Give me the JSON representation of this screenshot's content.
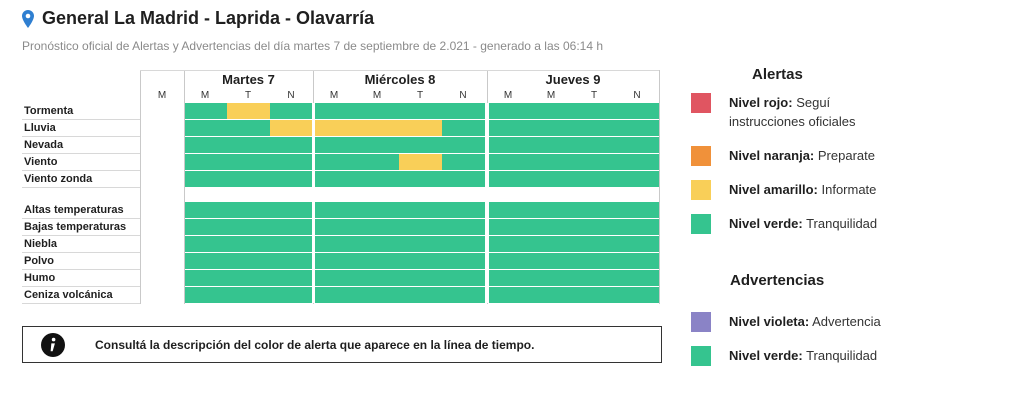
{
  "header": {
    "title": "General La Madrid - Laprida - Olavarría",
    "subtitle": "Pronóstico oficial de Alertas y Advertencias del día martes 7 de septiembre de 2.021 - generado a las 06:14 h"
  },
  "colors": {
    "rojo": "#e05561",
    "naranja": "#f0913a",
    "amarillo": "#f9cf58",
    "verde": "#35c48f",
    "violeta": "#8a83c6"
  },
  "days": [
    {
      "label": "Martes 7",
      "slots": [
        "M",
        "M",
        "T",
        "N"
      ]
    },
    {
      "label": "Miércoles 8",
      "slots": [
        "M",
        "M",
        "T",
        "N"
      ]
    },
    {
      "label": "Jueves 9",
      "slots": [
        "M",
        "M",
        "T",
        "N"
      ]
    }
  ],
  "alert_rows": [
    {
      "label": "Tormenta",
      "levels": [
        "none",
        "verde",
        "amarillo",
        "verde",
        "verde",
        "verde",
        "verde",
        "verde",
        "verde",
        "verde",
        "verde",
        "verde"
      ]
    },
    {
      "label": "Lluvia",
      "levels": [
        "none",
        "verde",
        "verde",
        "amarillo",
        "amarillo",
        "amarillo",
        "amarillo",
        "verde",
        "verde",
        "verde",
        "verde",
        "verde"
      ]
    },
    {
      "label": "Nevada",
      "levels": [
        "none",
        "verde",
        "verde",
        "verde",
        "verde",
        "verde",
        "verde",
        "verde",
        "verde",
        "verde",
        "verde",
        "verde"
      ]
    },
    {
      "label": "Viento",
      "levels": [
        "none",
        "verde",
        "verde",
        "verde",
        "verde",
        "verde",
        "amarillo",
        "verde",
        "verde",
        "verde",
        "verde",
        "verde"
      ]
    },
    {
      "label": "Viento zonda",
      "levels": [
        "none",
        "verde",
        "verde",
        "verde",
        "verde",
        "verde",
        "verde",
        "verde",
        "verde",
        "verde",
        "verde",
        "verde"
      ]
    }
  ],
  "warning_rows": [
    {
      "label": "Altas temperaturas",
      "levels": [
        "none",
        "verde",
        "verde",
        "verde",
        "verde",
        "verde",
        "verde",
        "verde",
        "verde",
        "verde",
        "verde",
        "verde"
      ]
    },
    {
      "label": "Bajas temperaturas",
      "levels": [
        "none",
        "verde",
        "verde",
        "verde",
        "verde",
        "verde",
        "verde",
        "verde",
        "verde",
        "verde",
        "verde",
        "verde"
      ]
    },
    {
      "label": "Niebla",
      "levels": [
        "none",
        "verde",
        "verde",
        "verde",
        "verde",
        "verde",
        "verde",
        "verde",
        "verde",
        "verde",
        "verde",
        "verde"
      ]
    },
    {
      "label": "Polvo",
      "levels": [
        "none",
        "verde",
        "verde",
        "verde",
        "verde",
        "verde",
        "verde",
        "verde",
        "verde",
        "verde",
        "verde",
        "verde"
      ]
    },
    {
      "label": "Humo",
      "levels": [
        "none",
        "verde",
        "verde",
        "verde",
        "verde",
        "verde",
        "verde",
        "verde",
        "verde",
        "verde",
        "verde",
        "verde"
      ]
    },
    {
      "label": "Ceniza volcánica",
      "levels": [
        "none",
        "verde",
        "verde",
        "verde",
        "verde",
        "verde",
        "verde",
        "verde",
        "verde",
        "verde",
        "verde",
        "verde"
      ]
    }
  ],
  "info": {
    "icon": "info-icon",
    "text": "Consultá la descripción del color de alerta que aparece en la línea de tiempo."
  },
  "legend": {
    "alerts_title": "Alertas",
    "alerts": [
      {
        "color": "rojo",
        "name": "Nivel rojo:",
        "desc": "Seguí instrucciones oficiales"
      },
      {
        "color": "naranja",
        "name": "Nivel naranja:",
        "desc": "Preparate"
      },
      {
        "color": "amarillo",
        "name": "Nivel amarillo:",
        "desc": "Informate"
      },
      {
        "color": "verde",
        "name": "Nivel verde:",
        "desc": "Tranquilidad"
      }
    ],
    "warnings_title": "Advertencias",
    "warnings": [
      {
        "color": "violeta",
        "name": "Nivel violeta:",
        "desc": "Advertencia"
      },
      {
        "color": "verde",
        "name": "Nivel verde:",
        "desc": "Tranquilidad"
      }
    ]
  }
}
